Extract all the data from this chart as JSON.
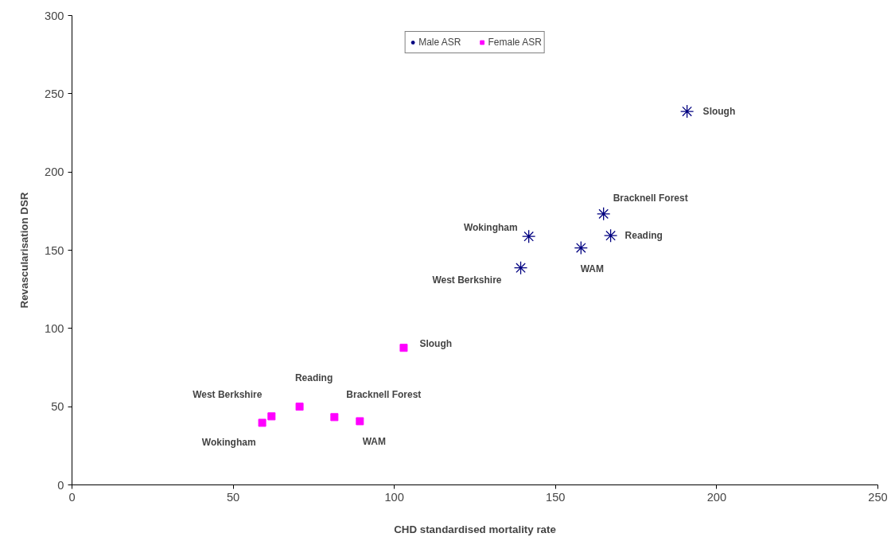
{
  "chart_data": {
    "type": "scatter",
    "xlabel": "CHD standardised mortality rate",
    "ylabel": "Revascularisation DSR",
    "xlim": [
      0,
      250
    ],
    "xticks": [
      0,
      50,
      100,
      150,
      200,
      250
    ],
    "ylim": [
      0,
      300
    ],
    "yticks": [
      0,
      50,
      100,
      150,
      200,
      250,
      300
    ],
    "grid": false,
    "legend": "top",
    "series": [
      {
        "name": "Male ASR",
        "color": "#000080",
        "marker": "cross",
        "x": [
          190.8,
          164.9,
          167.1,
          141.7,
          157.9,
          139.2
        ],
        "values": [
          238.7,
          173.2,
          159.3,
          158.8,
          151.5,
          138.7
        ]
      },
      {
        "name": "Female ASR",
        "color": "#ff00ff",
        "marker": "square",
        "x": [
          102.9,
          70.6,
          81.4,
          89.3,
          61.9,
          59.0
        ],
        "values": [
          87.6,
          50.0,
          43.3,
          40.7,
          43.8,
          39.7
        ]
      }
    ],
    "annotations": [
      {
        "text": "Slough",
        "x": 190.8,
        "y": 238.7
      },
      {
        "text": "Bracknell Forest",
        "x": 164.9,
        "y": 173.2
      },
      {
        "text": "Reading",
        "x": 167.1,
        "y": 159.3
      },
      {
        "text": "Wokingham",
        "x": 141.7,
        "y": 158.8
      },
      {
        "text": "WAM",
        "x": 157.9,
        "y": 151.5
      },
      {
        "text": "West Berkshire",
        "x": 139.2,
        "y": 138.7
      },
      {
        "text": "Slough",
        "x": 102.9,
        "y": 87.6
      },
      {
        "text": "Reading",
        "x": 70.6,
        "y": 50.0
      },
      {
        "text": "Bracknell Forest",
        "x": 81.4,
        "y": 43.3
      },
      {
        "text": "WAM",
        "x": 89.3,
        "y": 40.7
      },
      {
        "text": "West Berkshire",
        "x": 61.9,
        "y": 43.8
      },
      {
        "text": "Wokingham",
        "x": 59.0,
        "y": 39.7
      }
    ]
  }
}
